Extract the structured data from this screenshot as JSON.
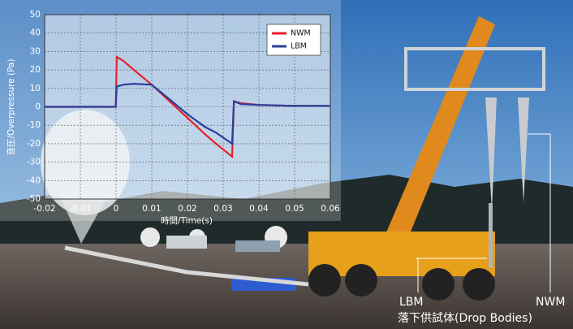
{
  "chart_data": {
    "type": "line",
    "xlabel": "時間/Time(s)",
    "ylabel": "音圧/Overpressure (Pa)",
    "x": [
      -0.02,
      -0.0001,
      0.0002,
      0.002,
      0.005,
      0.01,
      0.015,
      0.02,
      0.025,
      0.028,
      0.0325,
      0.033,
      0.035,
      0.04,
      0.05,
      0.06
    ],
    "series": [
      {
        "name": "NWM",
        "color": "#e8202a",
        "values": [
          0,
          0,
          27,
          25,
          20,
          12,
          3,
          -6,
          -15,
          -20,
          -27,
          3,
          2,
          1,
          0.5,
          0.5
        ]
      },
      {
        "name": "LBM",
        "color": "#2a3f9a",
        "values": [
          0,
          0,
          11,
          12,
          12.5,
          12,
          4,
          -4,
          -11,
          -14,
          -20,
          3,
          1.5,
          1,
          0.5,
          0.5
        ]
      }
    ],
    "xlim": [
      -0.02,
      0.06
    ],
    "xticks": [
      -0.02,
      -0.01,
      0,
      0.01,
      0.02,
      0.03,
      0.04,
      0.05,
      0.06
    ],
    "ylim": [
      -50,
      50
    ],
    "yticks": [
      50,
      40,
      30,
      20,
      10,
      0,
      -10,
      -20,
      -30,
      -40,
      -50
    ],
    "grid": true,
    "legend": "upper right"
  },
  "annotations": {
    "lbm": "LBM",
    "drop_bodies": "落下供試体(Drop Bodies)",
    "nwm": "NWM"
  }
}
